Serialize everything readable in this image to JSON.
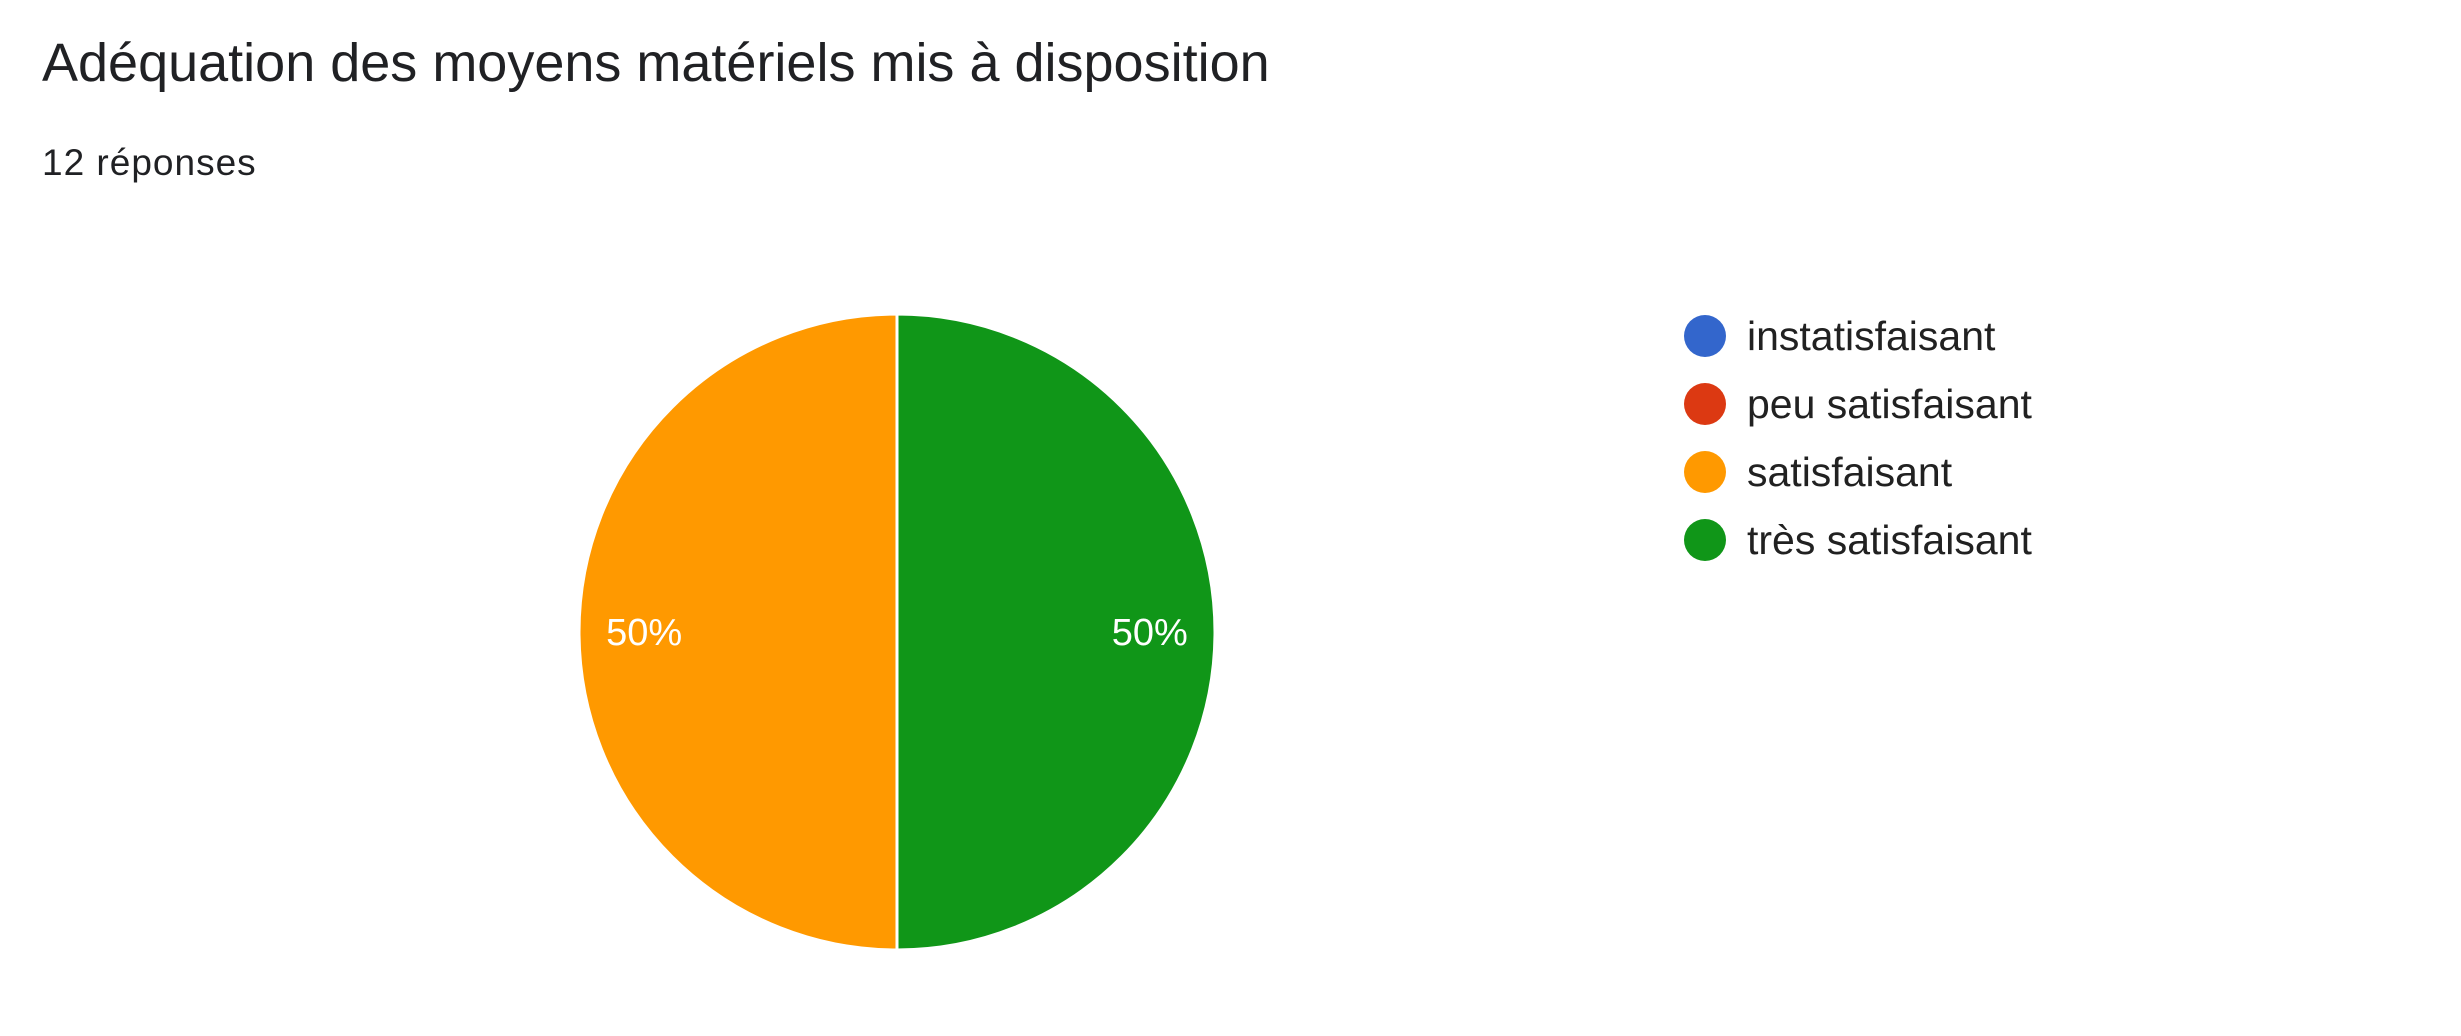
{
  "header": {
    "title": "Adéquation des moyens matériels mis à disposition",
    "responses": "12 réponses"
  },
  "chart_data": {
    "type": "pie",
    "title": "Adéquation des moyens matériels mis à disposition",
    "total_responses": 12,
    "legend_position": "right",
    "slices": [
      {
        "label": "instatisfaisant",
        "value": 0,
        "percent": 0,
        "color": "#3366cc"
      },
      {
        "label": "peu satisfaisant",
        "value": 0,
        "percent": 0,
        "color": "#dc3912"
      },
      {
        "label": "satisfaisant",
        "value": 6,
        "percent": 50,
        "color": "#ff9900"
      },
      {
        "label": "très satisfaisant",
        "value": 6,
        "percent": 50,
        "color": "#109618"
      }
    ],
    "slice_labels": [
      "50%",
      "50%"
    ]
  }
}
